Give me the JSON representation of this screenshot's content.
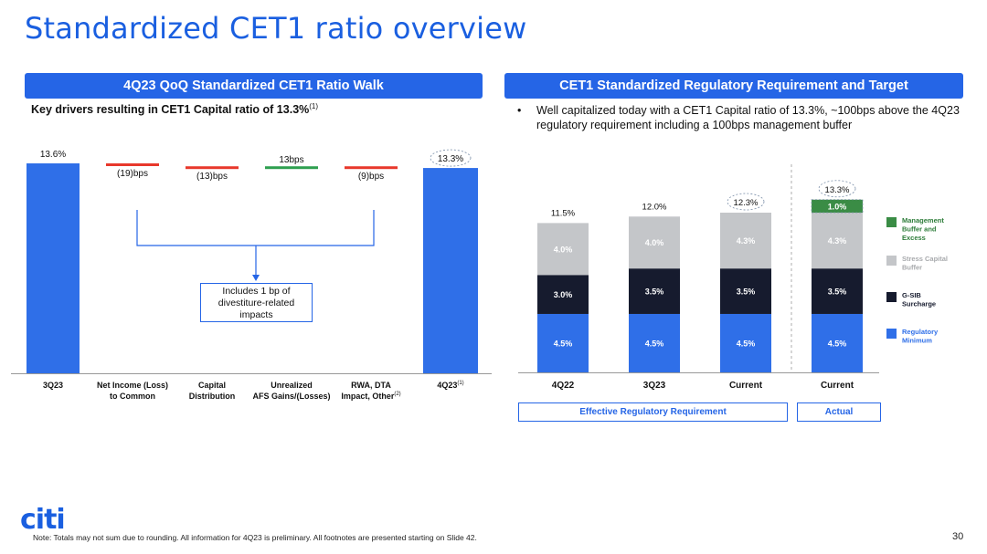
{
  "slide": {
    "title": "Standardized CET1 ratio overview",
    "page_number": "30",
    "note": "Note:  Totals may not sum due to rounding. All information for 4Q23 is preliminary. All footnotes are presented starting on Slide 42.",
    "logo_text": "citi"
  },
  "left_panel": {
    "banner": "4Q23 QoQ Standardized CET1 Ratio Walk",
    "subtitle": "Key drivers resulting in CET1 Capital ratio of 13.3%",
    "subtitle_footnote": "(1)",
    "callout": "Includes 1 bp of divestiture-related impacts"
  },
  "right_panel": {
    "banner": "CET1 Standardized Regulatory Requirement and Target",
    "bullet": "Well capitalized today with a CET1 Capital ratio of 13.3%, ~100bps above the 4Q23 regulatory requirement including a 100bps management buffer",
    "group_labels": [
      "Effective Regulatory Requirement",
      "Actual"
    ]
  },
  "chart_data": [
    {
      "type": "bar",
      "subtype": "waterfall",
      "unit": "%",
      "categories": [
        {
          "lines": [
            "3Q23"
          ],
          "sup": ""
        },
        {
          "lines": [
            "Net Income (Loss)",
            "to Common"
          ],
          "sup": ""
        },
        {
          "lines": [
            "Capital",
            "Distribution"
          ],
          "sup": ""
        },
        {
          "lines": [
            "Unrealized",
            "AFS Gains/(Losses)"
          ],
          "sup": ""
        },
        {
          "lines": [
            "RWA, DTA",
            "Impact, Other"
          ],
          "sup": "(2)"
        },
        {
          "lines": [
            "4Q23"
          ],
          "sup": "(1)"
        }
      ],
      "steps": [
        {
          "kind": "total",
          "value": 13.6,
          "label": "13.6%",
          "circled": false
        },
        {
          "kind": "delta",
          "value": -0.19,
          "label": "(19)bps",
          "color": "#e8382b"
        },
        {
          "kind": "delta",
          "value": -0.13,
          "label": "(13)bps",
          "color": "#e8382b"
        },
        {
          "kind": "delta",
          "value": 0.13,
          "label": "13bps",
          "color": "#2e9f4f"
        },
        {
          "kind": "delta",
          "value": -0.09,
          "label": "(9)bps",
          "color": "#e8382b"
        },
        {
          "kind": "total",
          "value": 13.3,
          "label": "13.3%",
          "circled": true
        }
      ],
      "colors": {
        "total": "#2f6fe8"
      }
    },
    {
      "type": "bar",
      "subtype": "stacked",
      "unit": "%",
      "categories": [
        "4Q22",
        "3Q23",
        "Current",
        "Current"
      ],
      "totals": [
        {
          "label": "11.5%",
          "circled": false
        },
        {
          "label": "12.0%",
          "circled": false
        },
        {
          "label": "12.3%",
          "circled": true
        },
        {
          "label": "13.3%",
          "circled": true
        }
      ],
      "series": [
        {
          "name": "Regulatory Minimum",
          "color": "#2f6fe8",
          "text_color": "#ffffff",
          "values": [
            4.5,
            4.5,
            4.5,
            4.5
          ],
          "labels": [
            "4.5%",
            "4.5%",
            "4.5%",
            "4.5%"
          ]
        },
        {
          "name": "G-SIB Surcharge",
          "color": "#161b2e",
          "text_color": "#ffffff",
          "values": [
            3.0,
            3.5,
            3.5,
            3.5
          ],
          "labels": [
            "3.0%",
            "3.5%",
            "3.5%",
            "3.5%"
          ]
        },
        {
          "name": "Stress Capital Buffer",
          "color": "#c4c6c9",
          "text_color": "#ffffff",
          "values": [
            4.0,
            4.0,
            4.3,
            4.3
          ],
          "labels": [
            "4.0%",
            "4.0%",
            "4.3%",
            "4.3%"
          ]
        },
        {
          "name": "Management Buffer and Excess",
          "color": "#3a8c45",
          "text_color": "#ffffff",
          "values": [
            0,
            0,
            0,
            1.0
          ],
          "labels": [
            "",
            "",
            "",
            "1.0%"
          ]
        }
      ],
      "legend": [
        {
          "lines": [
            "Management",
            "Buffer and",
            "Excess"
          ],
          "color": "#3a8c45",
          "text_color": "#2e7d3a"
        },
        {
          "lines": [
            "Stress Capital",
            "Buffer"
          ],
          "color": "#c4c6c9",
          "text_color": "#a8aaad"
        },
        {
          "lines": [
            "G-SIB",
            "Surcharge"
          ],
          "color": "#161b2e",
          "text_color": "#161b2e"
        },
        {
          "lines": [
            "Regulatory",
            "Minimum"
          ],
          "color": "#2f6fe8",
          "text_color": "#2f6fe8"
        }
      ]
    }
  ]
}
